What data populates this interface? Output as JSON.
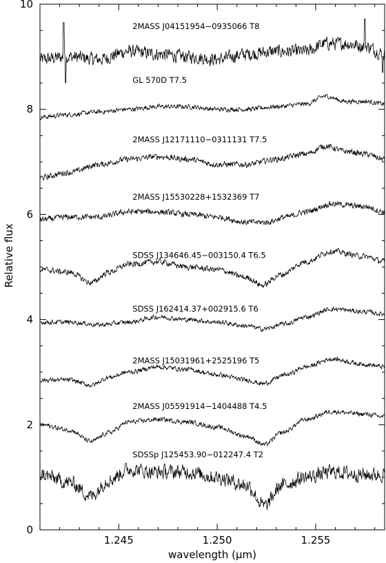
{
  "chart_data": {
    "type": "line",
    "xlabel": "wavelength (μm)",
    "ylabel": "Relative flux",
    "xlim": [
      1.241,
      1.2585
    ],
    "ylim": [
      0,
      10
    ],
    "x_ticks": [
      1.245,
      1.25,
      1.255
    ],
    "x_tick_labels": [
      "1.245",
      "1.250",
      "1.255"
    ],
    "y_ticks": [
      0,
      2,
      4,
      6,
      8,
      10
    ],
    "y_tick_labels": [
      "0",
      "2",
      "4",
      "6",
      "8",
      "10"
    ],
    "grid": false,
    "legend": "none",
    "series": [
      {
        "name": "2MASS J04151954−0935066 T8",
        "label_x": 1.2457,
        "label_y": 9.53,
        "noise": 0.11,
        "points": [
          [
            1.241,
            8.95
          ],
          [
            1.2425,
            9.0
          ],
          [
            1.244,
            8.95
          ],
          [
            1.2455,
            9.1
          ],
          [
            1.247,
            9.05
          ],
          [
            1.2485,
            9.0
          ],
          [
            1.25,
            8.95
          ],
          [
            1.2515,
            9.05
          ],
          [
            1.253,
            9.1
          ],
          [
            1.2545,
            9.1
          ],
          [
            1.2555,
            9.25
          ],
          [
            1.2565,
            9.25
          ],
          [
            1.2575,
            9.2
          ],
          [
            1.2585,
            9.05
          ]
        ],
        "spikes": [
          [
            1.2422,
            9.65
          ],
          [
            1.2423,
            8.5
          ],
          [
            1.2575,
            9.72
          ],
          [
            1.2584,
            8.7
          ]
        ]
      },
      {
        "name": "GL 570D T7.5",
        "label_x": 1.2457,
        "label_y": 8.5,
        "noise": 0.04,
        "points": [
          [
            1.241,
            7.85
          ],
          [
            1.2425,
            7.9
          ],
          [
            1.244,
            7.95
          ],
          [
            1.2455,
            8.0
          ],
          [
            1.247,
            8.05
          ],
          [
            1.2485,
            8.05
          ],
          [
            1.25,
            8.0
          ],
          [
            1.2515,
            8.0
          ],
          [
            1.253,
            8.05
          ],
          [
            1.2545,
            8.1
          ],
          [
            1.2555,
            8.25
          ],
          [
            1.2565,
            8.15
          ],
          [
            1.2575,
            8.15
          ],
          [
            1.2585,
            8.1
          ]
        ]
      },
      {
        "name": "2MASS J12171110−0311131 T7.5",
        "label_x": 1.2457,
        "label_y": 7.37,
        "noise": 0.05,
        "points": [
          [
            1.241,
            6.7
          ],
          [
            1.2425,
            6.8
          ],
          [
            1.244,
            6.95
          ],
          [
            1.2455,
            7.05
          ],
          [
            1.247,
            7.1
          ],
          [
            1.2485,
            7.05
          ],
          [
            1.25,
            6.95
          ],
          [
            1.2515,
            6.95
          ],
          [
            1.253,
            7.05
          ],
          [
            1.2545,
            7.15
          ],
          [
            1.2555,
            7.3
          ],
          [
            1.2565,
            7.2
          ],
          [
            1.2575,
            7.15
          ],
          [
            1.2585,
            7.05
          ]
        ]
      },
      {
        "name": "2MASS J15530228+1532369 T7",
        "label_x": 1.2457,
        "label_y": 6.28,
        "noise": 0.05,
        "points": [
          [
            1.241,
            5.9
          ],
          [
            1.2425,
            5.95
          ],
          [
            1.244,
            5.95
          ],
          [
            1.2455,
            6.05
          ],
          [
            1.247,
            6.05
          ],
          [
            1.2485,
            6.0
          ],
          [
            1.25,
            5.95
          ],
          [
            1.2515,
            5.85
          ],
          [
            1.2525,
            5.85
          ],
          [
            1.2535,
            5.95
          ],
          [
            1.2545,
            6.05
          ],
          [
            1.2558,
            6.2
          ],
          [
            1.2575,
            6.15
          ],
          [
            1.2585,
            6.05
          ]
        ]
      },
      {
        "name": "SDSS J134646.45−003150.4 T6.5",
        "label_x": 1.2457,
        "label_y": 5.17,
        "noise": 0.05,
        "points": [
          [
            1.241,
            4.95
          ],
          [
            1.2425,
            4.9
          ],
          [
            1.2436,
            4.7
          ],
          [
            1.2445,
            4.9
          ],
          [
            1.2455,
            5.05
          ],
          [
            1.247,
            5.1
          ],
          [
            1.2485,
            5.0
          ],
          [
            1.25,
            4.95
          ],
          [
            1.2515,
            4.8
          ],
          [
            1.2523,
            4.65
          ],
          [
            1.2532,
            4.85
          ],
          [
            1.2545,
            5.1
          ],
          [
            1.2558,
            5.3
          ],
          [
            1.2575,
            5.2
          ],
          [
            1.2585,
            5.1
          ]
        ]
      },
      {
        "name": "SDSS J162414.37+002915.6 T6",
        "label_x": 1.2457,
        "label_y": 4.15,
        "noise": 0.04,
        "points": [
          [
            1.241,
            3.95
          ],
          [
            1.2425,
            3.95
          ],
          [
            1.244,
            3.9
          ],
          [
            1.2455,
            3.95
          ],
          [
            1.247,
            4.05
          ],
          [
            1.2485,
            4.0
          ],
          [
            1.25,
            3.95
          ],
          [
            1.2515,
            3.88
          ],
          [
            1.2523,
            3.82
          ],
          [
            1.2535,
            3.92
          ],
          [
            1.2545,
            4.05
          ],
          [
            1.2558,
            4.2
          ],
          [
            1.2575,
            4.15
          ],
          [
            1.2585,
            4.1
          ]
        ]
      },
      {
        "name": "2MASS J15031961+2525196 T5",
        "label_x": 1.2457,
        "label_y": 3.17,
        "noise": 0.04,
        "points": [
          [
            1.241,
            2.85
          ],
          [
            1.2425,
            2.85
          ],
          [
            1.2436,
            2.75
          ],
          [
            1.2445,
            2.9
          ],
          [
            1.2455,
            3.0
          ],
          [
            1.247,
            3.1
          ],
          [
            1.2485,
            3.05
          ],
          [
            1.25,
            2.95
          ],
          [
            1.2515,
            2.85
          ],
          [
            1.2523,
            2.78
          ],
          [
            1.2535,
            2.95
          ],
          [
            1.2545,
            3.1
          ],
          [
            1.2558,
            3.25
          ],
          [
            1.2575,
            3.15
          ],
          [
            1.2585,
            3.1
          ]
        ]
      },
      {
        "name": "2MASS J05591914−1404488 T4.5",
        "label_x": 1.2457,
        "label_y": 2.3,
        "noise": 0.04,
        "points": [
          [
            1.241,
            2.0
          ],
          [
            1.2425,
            1.9
          ],
          [
            1.2436,
            1.68
          ],
          [
            1.2445,
            1.85
          ],
          [
            1.2455,
            2.05
          ],
          [
            1.247,
            2.1
          ],
          [
            1.2485,
            2.05
          ],
          [
            1.25,
            1.95
          ],
          [
            1.2515,
            1.78
          ],
          [
            1.2524,
            1.62
          ],
          [
            1.2533,
            1.85
          ],
          [
            1.2545,
            2.1
          ],
          [
            1.2558,
            2.25
          ],
          [
            1.2575,
            2.2
          ],
          [
            1.2585,
            2.15
          ]
        ]
      },
      {
        "name": "SDSSp J125453.90−012247.4 T2",
        "label_x": 1.2457,
        "label_y": 1.38,
        "noise": 0.12,
        "points": [
          [
            1.241,
            1.05
          ],
          [
            1.2425,
            0.9
          ],
          [
            1.2436,
            0.65
          ],
          [
            1.2445,
            0.95
          ],
          [
            1.2455,
            1.15
          ],
          [
            1.247,
            1.1
          ],
          [
            1.2485,
            1.1
          ],
          [
            1.25,
            1.0
          ],
          [
            1.2515,
            0.85
          ],
          [
            1.2524,
            0.45
          ],
          [
            1.2533,
            0.85
          ],
          [
            1.2545,
            1.0
          ],
          [
            1.2558,
            1.1
          ],
          [
            1.2575,
            1.05
          ],
          [
            1.2585,
            1.05
          ]
        ]
      }
    ]
  }
}
